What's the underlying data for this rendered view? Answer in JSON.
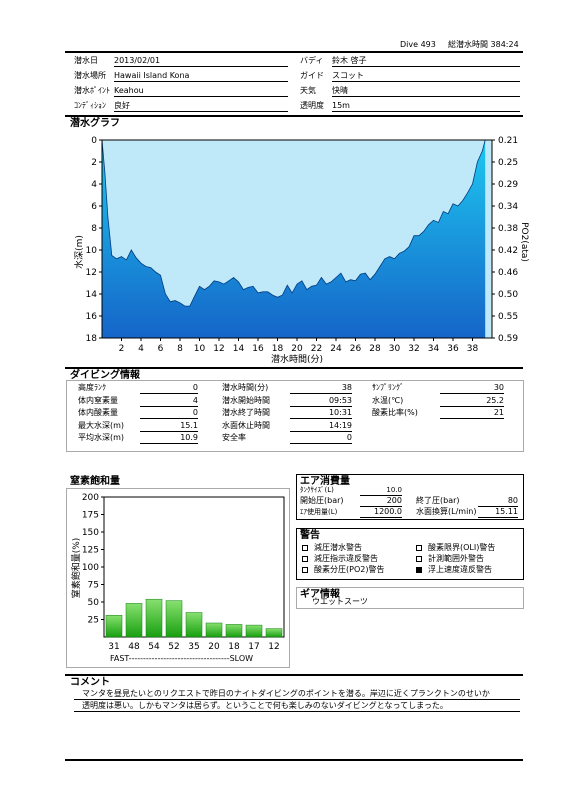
{
  "header": {
    "dive_no": "Dive 493",
    "total_time": "総潜水時間 384:24"
  },
  "info": {
    "date_label": "潜水日",
    "date": "2013/02/01",
    "place_label": "潜水場所",
    "place": "Hawaii Island  Kona",
    "point_label": "潜水ﾎﾟｲﾝﾄ",
    "point": "Keahou",
    "condition_label": "ｺﾝﾃﾞｨｼｮﾝ",
    "condition": "良好",
    "buddy_label": "バディ",
    "buddy": "鈴木  啓子",
    "guide_label": "ガイド",
    "guide": "スコット",
    "weather_label": "天気",
    "weather": "快晴",
    "visibility_label": "透明度",
    "visibility": "15m"
  },
  "graph": {
    "title": "潜水グラフ",
    "ylabel": "水深(m)",
    "y2label": "PO2(ata)",
    "xlabel": "潜水時間(分)",
    "depth_ticks": [
      "0",
      "2",
      "4",
      "6",
      "8",
      "10",
      "12",
      "14",
      "16",
      "18"
    ],
    "po2_ticks": [
      "0.21",
      "0.25",
      "0.29",
      "0.34",
      "0.38",
      "0.42",
      "0.46",
      "0.50",
      "0.55",
      "0.59"
    ],
    "x_ticks": [
      "2",
      "4",
      "6",
      "8",
      "10",
      "12",
      "14",
      "16",
      "18",
      "20",
      "22",
      "24",
      "26",
      "28",
      "30",
      "32",
      "34",
      "36",
      "38"
    ]
  },
  "chart_data": [
    {
      "type": "area",
      "title": "潜水グラフ",
      "xlabel": "潜水時間(分)",
      "ylabel": "水深(m)",
      "y2label": "PO2(ata)",
      "xlim": [
        0,
        40
      ],
      "ylim": [
        18,
        0
      ],
      "y2lim": [
        0.59,
        0.21
      ],
      "grid": false,
      "series": [
        {
          "name": "水深(m)",
          "x": [
            0,
            0.3,
            0.6,
            1,
            1.5,
            2,
            2.5,
            3,
            3.5,
            4,
            4.5,
            5,
            5.5,
            6,
            6.5,
            7,
            7.5,
            8,
            8.5,
            9,
            9.5,
            10,
            10.5,
            11,
            11.5,
            12,
            12.5,
            13,
            13.5,
            14,
            14.5,
            15,
            15.5,
            16,
            16.5,
            17,
            17.5,
            18,
            18.5,
            19,
            19.5,
            20,
            20.5,
            21,
            21.5,
            22,
            22.5,
            23,
            23.5,
            24,
            24.5,
            25,
            25.5,
            26,
            26.5,
            27,
            27.5,
            28,
            28.5,
            29,
            29.5,
            30,
            30.5,
            31,
            31.5,
            32,
            32.5,
            33,
            33.5,
            34,
            34.5,
            35,
            35.5,
            36,
            36.5,
            37,
            37.5,
            38,
            38.5,
            39,
            39.3
          ],
          "y": [
            0,
            3,
            7,
            10.5,
            10.8,
            10.6,
            10.9,
            10,
            10.7,
            11.2,
            11.5,
            11.6,
            12,
            12.3,
            14,
            14.7,
            14.6,
            14.8,
            15.1,
            15.1,
            14.2,
            13.3,
            13.6,
            13.3,
            12.8,
            12.9,
            13.1,
            12.8,
            12.5,
            12.9,
            13.6,
            13.4,
            13.3,
            13.9,
            13.8,
            13.8,
            14.1,
            14.3,
            14.1,
            13.2,
            13.9,
            13.1,
            12.8,
            13.6,
            13.3,
            13.2,
            12.5,
            13.1,
            12.9,
            12.5,
            12.1,
            12.9,
            12.7,
            12.8,
            12.2,
            12.1,
            12.7,
            12.2,
            11.5,
            10.8,
            10.6,
            10.8,
            10.3,
            10.1,
            9.7,
            8.7,
            8.7,
            8.3,
            7.7,
            7.3,
            7.5,
            6.5,
            6.7,
            5.8,
            6,
            5.5,
            4.8,
            4,
            2,
            1,
            0
          ]
        }
      ]
    },
    {
      "type": "bar",
      "title": "窒素飽和量",
      "ylabel": "窒素飽和量(%)",
      "ylim": [
        0,
        200
      ],
      "categories": [
        "31",
        "48",
        "54",
        "52",
        "35",
        "20",
        "18",
        "17",
        "12"
      ],
      "values": [
        31,
        48,
        54,
        52,
        35,
        20,
        18,
        17,
        12
      ],
      "y_ticks": [
        25,
        50,
        75,
        100,
        125,
        150,
        175,
        200
      ],
      "grid": false
    }
  ],
  "diving": {
    "title": "ダイビング情報",
    "col1": [
      {
        "label": "高度ﾗﾝｸ",
        "value": "0"
      },
      {
        "label": "体内窒素量",
        "value": "4"
      },
      {
        "label": "体内酸素量",
        "value": "0"
      },
      {
        "label": "最大水深(m)",
        "value": "15.1"
      },
      {
        "label": "平均水深(m)",
        "value": "10.9"
      }
    ],
    "col2": [
      {
        "label": "潜水時間(分)",
        "value": "38"
      },
      {
        "label": "潜水開始時間",
        "value": "09:53"
      },
      {
        "label": "潜水終了時間",
        "value": "10:31"
      },
      {
        "label": "水面休止時間",
        "value": "14:19"
      },
      {
        "label": "安全率",
        "value": "0"
      }
    ],
    "col3": [
      {
        "label": "ｻﾝﾌﾟﾘﾝｸﾞ",
        "value": "30"
      },
      {
        "label": "水温(℃)",
        "value": "25.2"
      },
      {
        "label": "酸素比率(%)",
        "value": "21"
      }
    ]
  },
  "nitrogen": {
    "title": "窒素飽和量",
    "ylabel": "窒素飽和量(%)",
    "scale": "FAST-----------------------------------SLOW"
  },
  "air": {
    "title": "エア消費量",
    "tank_label": "ﾀﾝｸｻｲｽﾞ(L)",
    "tank": "10.0",
    "start_label": "開始圧(bar)",
    "start": "200",
    "end_label": "終了圧(bar)",
    "end": "80",
    "used_label": "ｴｱ使用量(L)",
    "used": "1200.0",
    "surface_label": "水面換算(L/min)",
    "surface": "15.11"
  },
  "warnings": {
    "title": "警告",
    "items": [
      {
        "label": "減圧潜水警告",
        "checked": false
      },
      {
        "label": "酸素限界(OLI)警告",
        "checked": false
      },
      {
        "label": "減圧指示違反警告",
        "checked": false
      },
      {
        "label": "計測範囲外警告",
        "checked": false
      },
      {
        "label": "酸素分圧(PO2)警告",
        "checked": false
      },
      {
        "label": "浮上速度違反警告",
        "checked": true
      }
    ]
  },
  "gear": {
    "title": "ギア情報",
    "text": "ウエットスーツ"
  },
  "comment": {
    "title": "コメント",
    "line1": "マンタを昼見たいとのリクエストで昨日のナイトダイビングのポイントを潜る。岸辺に近くプランクトンのせいか",
    "line2": "透明度は悪い。しかもマンタは居らず。ということで何も楽しみのないダイビングとなってしまった。"
  },
  "colors": {
    "bg": "#bfe8f8",
    "fill_top": "#1ec8f0",
    "fill_bottom": "#1565c8",
    "bar_top": "#88e070",
    "bar_bottom": "#18a010"
  }
}
